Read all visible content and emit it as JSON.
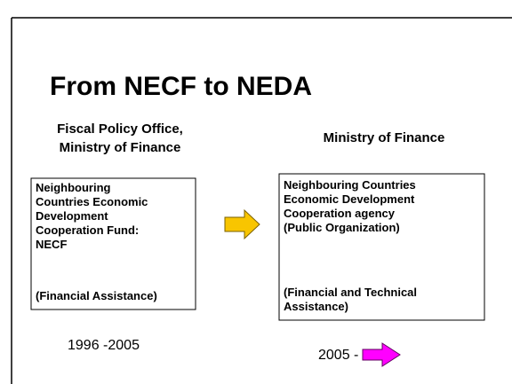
{
  "title": "From NECF to NEDA",
  "left": {
    "heading": [
      "Fiscal Policy Office,",
      "Ministry of Finance"
    ],
    "box_lines": [
      "Neighbouring",
      "Countries Economic",
      "Development",
      "Cooperation Fund:",
      "NECF"
    ],
    "box_note": [
      "(Financial Assistance)"
    ],
    "period": "1996 -2005"
  },
  "right": {
    "heading": [
      "Ministry of Finance"
    ],
    "box_lines": [
      "Neighbouring Countries",
      "Economic Development",
      "Cooperation agency",
      "(Public Organization)"
    ],
    "box_note": [
      "(Financial and Technical",
      "Assistance)"
    ],
    "period": "2005 -"
  }
}
